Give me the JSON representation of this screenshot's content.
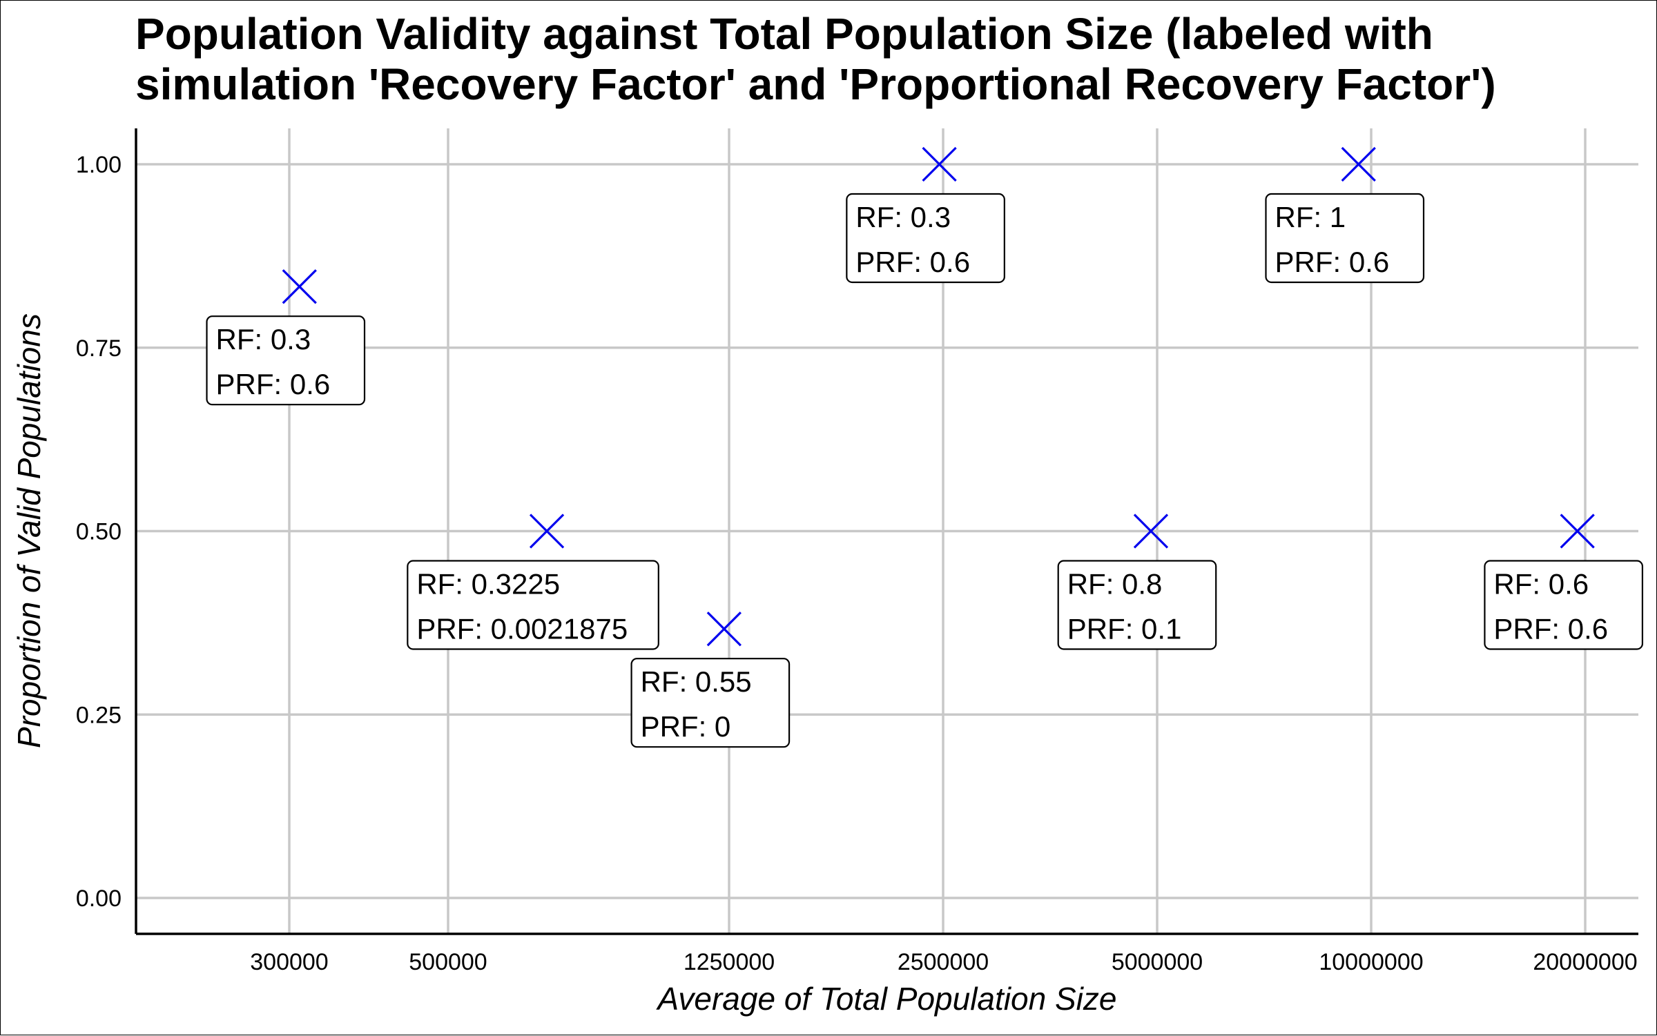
{
  "chart_data": {
    "type": "scatter",
    "title_lines": [
      "Population Validity against Total Population Size (labeled with",
      "simulation 'Recovery Factor' and 'Proportional Recovery Factor')"
    ],
    "xlabel": "Average of Total Population Size",
    "ylabel": "Proportion of Valid Populations",
    "x_scale": "log",
    "x_ticks": [
      300000,
      500000,
      1250000,
      2500000,
      5000000,
      10000000,
      20000000
    ],
    "x_tick_labels": [
      "300000",
      "500000",
      "1250000",
      "2500000",
      "5000000",
      "10000000",
      "20000000"
    ],
    "y_ticks": [
      0,
      0.25,
      0.5,
      0.75,
      1
    ],
    "y_tick_labels": [
      "0.00",
      "0.25",
      "0.50",
      "0.75",
      "1.00"
    ],
    "ylim": [
      -0.05,
      1.05
    ],
    "grid": true,
    "marker": "x",
    "marker_color": "#0000ee",
    "points": [
      {
        "x": 310000,
        "y": 0.8333,
        "rf_label": "RF:  0.3",
        "prf_label": "PRF:  0.6"
      },
      {
        "x": 690000,
        "y": 0.5,
        "rf_label": "RF:  0.3225",
        "prf_label": "PRF:  0.0021875"
      },
      {
        "x": 1230000,
        "y": 0.3667,
        "rf_label": "RF:  0.55",
        "prf_label": "PRF:  0"
      },
      {
        "x": 2470000,
        "y": 1.0,
        "rf_label": "RF:  0.3",
        "prf_label": "PRF:  0.6"
      },
      {
        "x": 4900000,
        "y": 0.5,
        "rf_label": "RF:  0.8",
        "prf_label": "PRF:  0.1"
      },
      {
        "x": 9600000,
        "y": 1.0,
        "rf_label": "RF:  1",
        "prf_label": "PRF:  0.6"
      },
      {
        "x": 19500000,
        "y": 0.5,
        "rf_label": "RF:  0.6",
        "prf_label": "PRF:  0.6"
      }
    ]
  }
}
